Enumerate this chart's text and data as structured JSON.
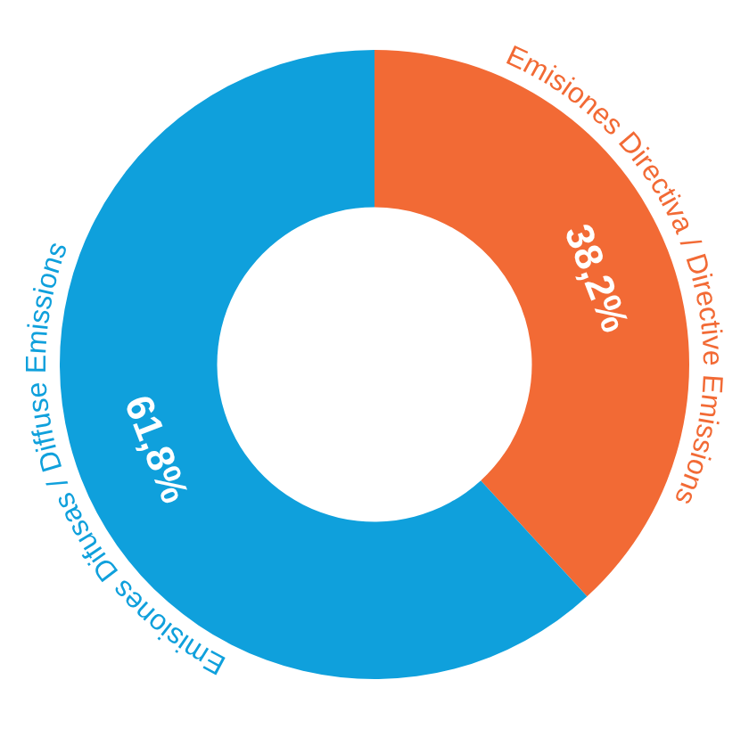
{
  "chart_data": {
    "type": "donut",
    "categories": [
      "Emisiones Directiva / Directive Emissions",
      "Emisiones Difusas / Diffuse Emissions"
    ],
    "values": [
      38.2,
      61.8
    ],
    "colors": [
      "#f26a35",
      "#0fa0dc"
    ],
    "value_labels": [
      "38,2%",
      "61,8%"
    ]
  }
}
